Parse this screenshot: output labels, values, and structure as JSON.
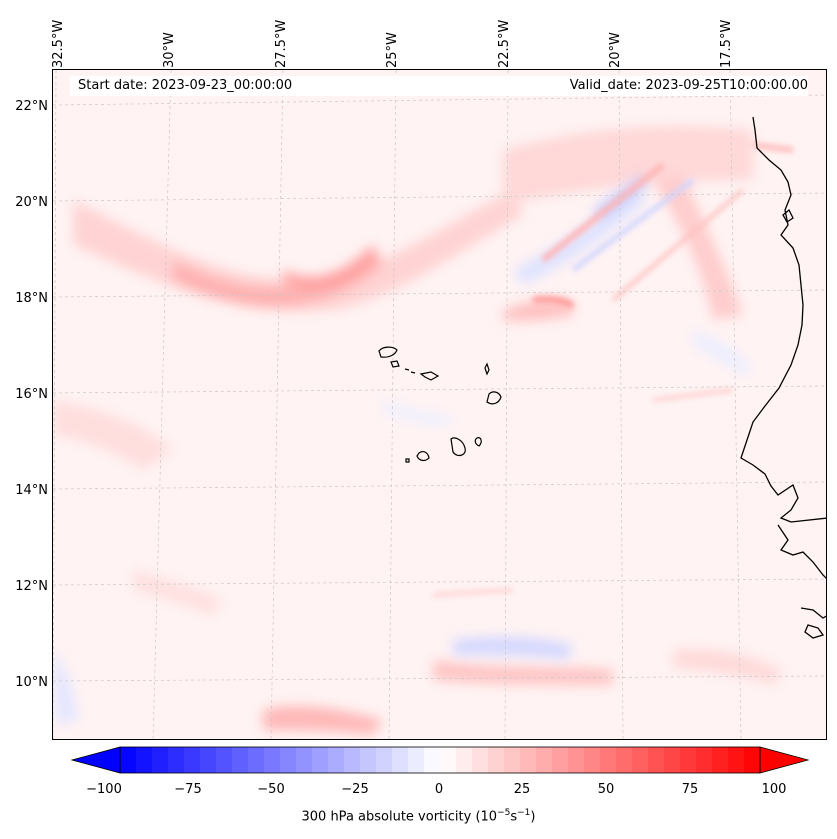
{
  "map": {
    "start_date_text": "Start date: 2023-09-23_00:00:00",
    "valid_date_text": "Valid_date: 2023-09-25T10:00:00.00",
    "longitude_labels": [
      "32.5°W",
      "30°W",
      "27.5°W",
      "25°W",
      "22.5°W",
      "20°W",
      "17.5°W"
    ],
    "latitude_labels": [
      "22°N",
      "20°N",
      "18°N",
      "16°N",
      "14°N",
      "12°N",
      "10°N"
    ],
    "field": "300 hPa absolute vorticity",
    "colorbar": {
      "ticks": [
        "−100",
        "−75",
        "−50",
        "−25",
        "0",
        "25",
        "50",
        "75",
        "100"
      ],
      "range": [
        -100,
        100
      ],
      "colormap": "bwr",
      "extend": "both",
      "label_prefix": "300 hPa absolute vorticity (10",
      "label_exp1": "−5",
      "label_mid": "s",
      "label_exp2": "−1",
      "label_suffix": ")"
    },
    "colors": {
      "negative_max": "#0000ff",
      "neutral": "#ffffff",
      "positive_max": "#ff0000",
      "coastline": "#000000",
      "gridline": "#bdbdbd"
    }
  }
}
